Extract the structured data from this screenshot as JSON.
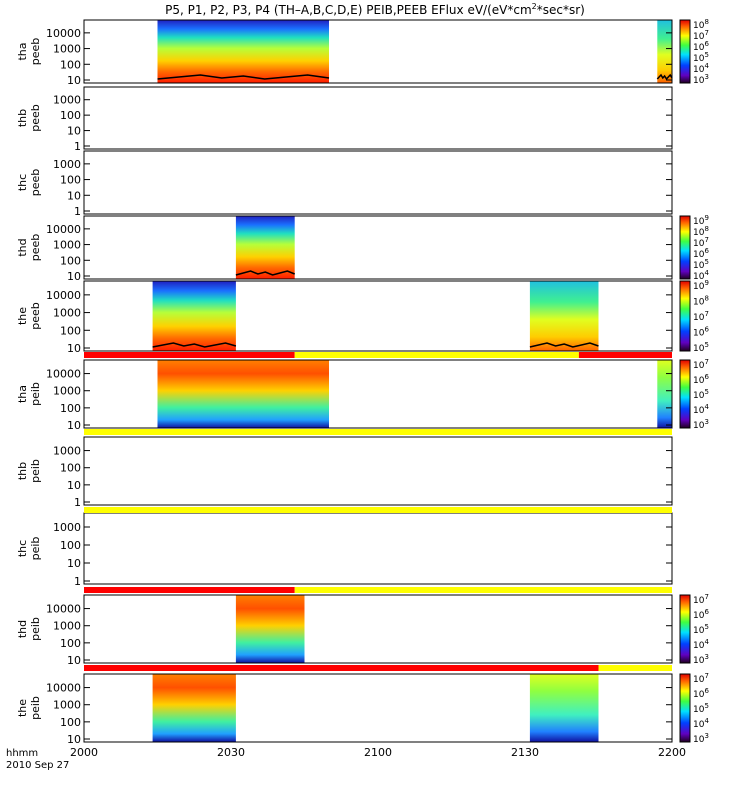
{
  "title": {
    "pre": "P5, P1, P2, P3, P4 (TH–A,B,C,D,E) PEIB,PEEB EFlux eV/(eV*cm",
    "sup": "2",
    "post": "*sec*sr)"
  },
  "x_axis": {
    "ticks": [
      "2000",
      "2030",
      "2100",
      "2130",
      "2200"
    ],
    "unit_label": "hhmm",
    "date_label": "2010 Sep 27"
  },
  "colors": {
    "flag_red": "#ff0000",
    "flag_yellow": "#ffff00",
    "trace": "#000000"
  },
  "chart_data": {
    "type": "heatmap",
    "x_units": "hhmm UT (2010 Sep 27)",
    "x_range": [
      "20:00",
      "22:00"
    ],
    "y_scale": "log",
    "y_units": "eV",
    "color_scale": "log",
    "panels": [
      {
        "probe": "tha",
        "product": "peeb",
        "y_ticks": [
          "10",
          "100",
          "1000",
          "10000"
        ],
        "colorbar_ticks": [
          "10^3",
          "10^4",
          "10^5",
          "10^6",
          "10^7",
          "10^8"
        ],
        "data_intervals": [
          [
            "20:15",
            "20:50"
          ],
          [
            "21:57",
            "22:00"
          ]
        ]
      },
      {
        "probe": "thb",
        "product": "peeb",
        "y_ticks": [
          "1",
          "10",
          "100",
          "1000"
        ],
        "colorbar_ticks": [],
        "data_intervals": []
      },
      {
        "probe": "thc",
        "product": "peeb",
        "y_ticks": [
          "1",
          "10",
          "100",
          "1000"
        ],
        "colorbar_ticks": [],
        "data_intervals": []
      },
      {
        "probe": "thd",
        "product": "peeb",
        "y_ticks": [
          "10",
          "100",
          "1000",
          "10000"
        ],
        "colorbar_ticks": [
          "10^4",
          "10^5",
          "10^6",
          "10^7",
          "10^8",
          "10^9"
        ],
        "data_intervals": [
          [
            "20:31",
            "20:43"
          ]
        ]
      },
      {
        "probe": "the",
        "product": "peeb",
        "y_ticks": [
          "10",
          "100",
          "1000",
          "10000"
        ],
        "colorbar_ticks": [
          "10^5",
          "10^6",
          "10^7",
          "10^8",
          "10^9"
        ],
        "data_intervals": [
          [
            "20:14",
            "20:31"
          ],
          [
            "21:31",
            "21:45"
          ]
        ]
      },
      {
        "probe": "tha",
        "product": "peib",
        "y_ticks": [
          "10",
          "100",
          "1000",
          "10000"
        ],
        "colorbar_ticks": [
          "10^3",
          "10^4",
          "10^5",
          "10^6",
          "10^7"
        ],
        "data_intervals": [
          [
            "20:15",
            "20:50"
          ],
          [
            "21:57",
            "22:00"
          ]
        ]
      },
      {
        "probe": "thb",
        "product": "peib",
        "y_ticks": [
          "1",
          "10",
          "100",
          "1000"
        ],
        "colorbar_ticks": [],
        "data_intervals": []
      },
      {
        "probe": "thc",
        "product": "peib",
        "y_ticks": [
          "1",
          "10",
          "100",
          "1000"
        ],
        "colorbar_ticks": [],
        "data_intervals": []
      },
      {
        "probe": "thd",
        "product": "peib",
        "y_ticks": [
          "10",
          "100",
          "1000",
          "10000"
        ],
        "colorbar_ticks": [
          "10^3",
          "10^4",
          "10^5",
          "10^6",
          "10^7"
        ],
        "data_intervals": [
          [
            "20:31",
            "20:45"
          ]
        ]
      },
      {
        "probe": "the",
        "product": "peib",
        "y_ticks": [
          "10",
          "100",
          "1000",
          "10000"
        ],
        "colorbar_ticks": [
          "10^3",
          "10^4",
          "10^5",
          "10^6",
          "10^7"
        ],
        "data_intervals": [
          [
            "20:14",
            "20:31"
          ],
          [
            "21:31",
            "21:45"
          ]
        ]
      }
    ],
    "flag_bars": [
      {
        "after_panel": 5,
        "segments": [
          [
            "20:00",
            "20:43",
            "red"
          ],
          [
            "20:43",
            "21:41",
            "yellow"
          ],
          [
            "21:41",
            "22:00",
            "red"
          ]
        ]
      },
      {
        "after_panel": 6,
        "segments": [
          [
            "20:00",
            "22:00",
            "yellow"
          ]
        ]
      },
      {
        "after_panel": 7,
        "segments": [
          [
            "20:00",
            "22:00",
            "yellow"
          ]
        ]
      },
      {
        "after_panel": 8,
        "segments": [
          [
            "20:00",
            "20:43",
            "red"
          ],
          [
            "20:43",
            "22:00",
            "yellow"
          ]
        ]
      },
      {
        "after_panel": 9,
        "segments": [
          [
            "20:00",
            "21:45",
            "red"
          ],
          [
            "21:45",
            "22:00",
            "yellow"
          ]
        ]
      }
    ]
  }
}
